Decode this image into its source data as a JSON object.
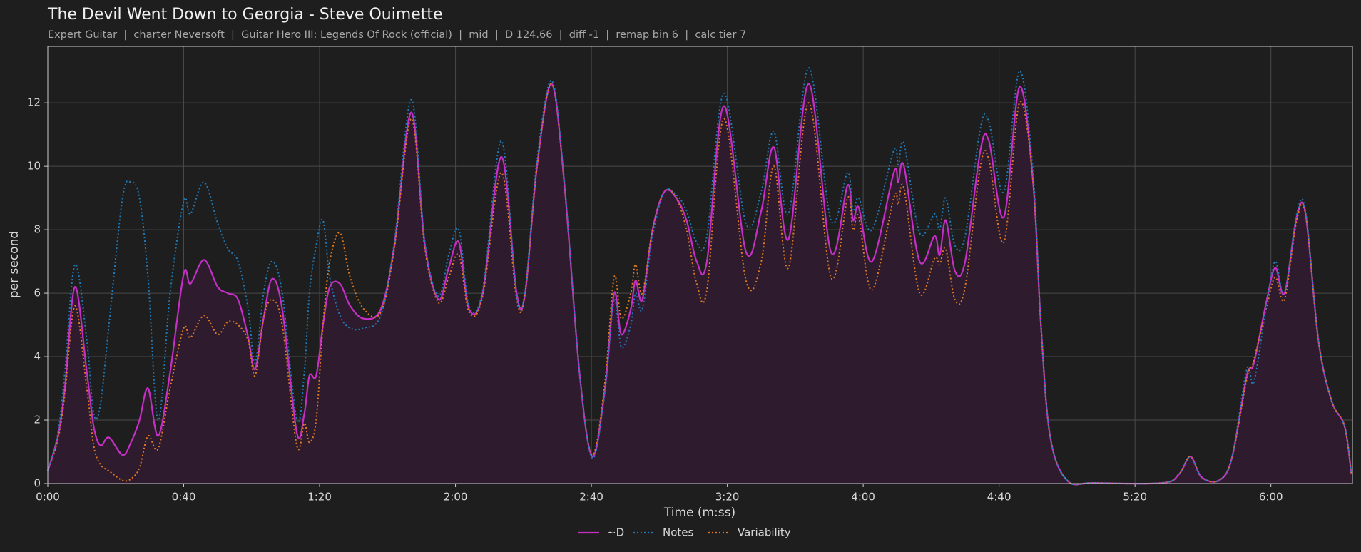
{
  "chart_data": {
    "type": "line",
    "title": "The Devil Went Down to Georgia - Steve Ouimette",
    "subtitle": "Expert Guitar  |  charter Neversoft  |  Guitar Hero III: Legends Of Rock (official)  |  mid  |  D 124.66  |  diff -1  |  remap bin 6  |  calc tier 7",
    "xlabel": "Time (m:ss)",
    "ylabel": "per second",
    "xlim": [
      0,
      384
    ],
    "ylim": [
      0,
      13.78
    ],
    "xticks": [
      {
        "value": 0,
        "label": "0:00"
      },
      {
        "value": 40,
        "label": "0:40"
      },
      {
        "value": 80,
        "label": "1:20"
      },
      {
        "value": 120,
        "label": "2:00"
      },
      {
        "value": 160,
        "label": "2:40"
      },
      {
        "value": 200,
        "label": "3:20"
      },
      {
        "value": 240,
        "label": "4:00"
      },
      {
        "value": 280,
        "label": "4:40"
      },
      {
        "value": 320,
        "label": "5:20"
      },
      {
        "value": 360,
        "label": "6:00"
      }
    ],
    "yticks": [
      0,
      2,
      4,
      6,
      8,
      10,
      12
    ],
    "grid": true,
    "legend": "bottom",
    "x": [
      0,
      3,
      5,
      8,
      11.5,
      13.5,
      15.5,
      18,
      22,
      24.5,
      27,
      29.5,
      32.5,
      36,
      40,
      42,
      46,
      50,
      53,
      56,
      59,
      61,
      63.5,
      66,
      69,
      73.3,
      75.5,
      77,
      79,
      81,
      83,
      86,
      89,
      93,
      98,
      102,
      107,
      111,
      115,
      118,
      121,
      124,
      128,
      133.5,
      138,
      140.5,
      144,
      148.3,
      152,
      156.5,
      160.3,
      164,
      166.7,
      168.8,
      171.6,
      173,
      175,
      178,
      181.5,
      185,
      188,
      191,
      194,
      199,
      205.5,
      210,
      213.7,
      218,
      224,
      230.5,
      235.4,
      237,
      238.7,
      242.6,
      249,
      250.3,
      252,
      256.6,
      261,
      262.5,
      264.3,
      267,
      270,
      274.5,
      277,
      281.4,
      286,
      290,
      292.3,
      295,
      300,
      308,
      328,
      333,
      336.3,
      339.6,
      344.7,
      348.5,
      352.9,
      355,
      358.8,
      361.3,
      364,
      367.6,
      370.2,
      374,
      377.9,
      381.7,
      383.7
    ],
    "series": [
      {
        "name": "~D",
        "color": "#c62fc6",
        "linestyle": "solid",
        "fill": "#2e1b2e",
        "values": [
          0.4,
          1.5,
          3.0,
          6.2,
          3.5,
          1.8,
          1.2,
          1.45,
          0.9,
          1.3,
          2.0,
          3.0,
          1.5,
          3.5,
          6.6,
          6.3,
          7.05,
          6.2,
          6.0,
          5.8,
          4.6,
          3.6,
          5.2,
          6.45,
          5.5,
          1.6,
          2.2,
          3.4,
          3.4,
          5.0,
          6.2,
          6.3,
          5.6,
          5.2,
          5.5,
          7.5,
          11.7,
          7.5,
          5.8,
          6.8,
          7.6,
          5.5,
          6.0,
          10.3,
          6.0,
          6.0,
          10,
          12.6,
          9.5,
          3.5,
          0.85,
          3.0,
          6.0,
          4.7,
          5.5,
          6.4,
          5.8,
          8.0,
          9.2,
          9.0,
          8.3,
          7.0,
          7.0,
          11.9,
          7.3,
          8.6,
          10.6,
          7.7,
          12.6,
          7.3,
          9.4,
          8.3,
          8.7,
          7.0,
          9.8,
          9.5,
          10.0,
          7.0,
          7.8,
          7.2,
          8.3,
          6.7,
          7.0,
          10.5,
          10.8,
          8.4,
          12.5,
          9.5,
          5.0,
          1.5,
          0.1,
          0.02,
          0.02,
          0.3,
          0.85,
          0.2,
          0.1,
          0.8,
          3.4,
          3.8,
          5.8,
          6.8,
          6.0,
          8.4,
          8.5,
          4.5,
          2.6,
          1.8,
          0.3
        ]
      },
      {
        "name": "Notes",
        "color": "#1f7ab8",
        "linestyle": "dotted",
        "values": [
          0.4,
          1.6,
          3.5,
          6.9,
          4.5,
          2.2,
          2.5,
          5.0,
          9.0,
          9.5,
          9.0,
          6.5,
          2.0,
          6.0,
          8.9,
          8.5,
          9.5,
          8.2,
          7.4,
          7.0,
          5.5,
          3.8,
          6.0,
          7.0,
          6.0,
          2.0,
          3.5,
          6.0,
          7.5,
          8.3,
          6.5,
          5.3,
          4.9,
          4.9,
          5.3,
          7.6,
          12.1,
          7.6,
          5.9,
          7.2,
          8.0,
          5.6,
          6.1,
          10.8,
          5.9,
          6.1,
          10.2,
          12.7,
          9.6,
          3.5,
          0.8,
          2.9,
          5.8,
          4.3,
          5.0,
          6.0,
          5.5,
          7.8,
          9.2,
          9.1,
          8.6,
          7.6,
          7.8,
          12.3,
          8.2,
          9.2,
          11.1,
          8.5,
          13.1,
          8.3,
          9.8,
          8.6,
          9.0,
          8.0,
          10.5,
          10.0,
          10.7,
          7.9,
          8.5,
          8.0,
          9.0,
          7.5,
          7.8,
          11.2,
          11.4,
          9.2,
          13.0,
          9.8,
          5.0,
          1.5,
          0.1,
          0.02,
          0.02,
          0.3,
          0.85,
          0.2,
          0.1,
          0.8,
          3.6,
          3.2,
          5.7,
          7.0,
          6.0,
          8.5,
          8.6,
          4.5,
          2.6,
          1.8,
          0.3
        ]
      },
      {
        "name": "Variability",
        "color": "#e07a1f",
        "linestyle": "dotted",
        "values": [
          0.4,
          1.4,
          2.8,
          5.6,
          3.0,
          1.2,
          0.6,
          0.4,
          0.1,
          0.15,
          0.5,
          1.5,
          1.1,
          3.0,
          4.9,
          4.6,
          5.3,
          4.7,
          5.1,
          5.0,
          4.5,
          3.4,
          5.2,
          5.8,
          5.0,
          1.2,
          1.9,
          1.3,
          2.0,
          5.0,
          7.0,
          7.9,
          6.5,
          5.5,
          5.4,
          7.4,
          11.5,
          7.4,
          5.7,
          6.5,
          7.2,
          5.4,
          5.9,
          9.8,
          5.8,
          6.0,
          10,
          12.6,
          9.5,
          3.5,
          0.9,
          3.2,
          6.5,
          5.2,
          6.0,
          6.9,
          6.0,
          8.0,
          9.2,
          9.0,
          8.0,
          6.3,
          6.1,
          11.5,
          6.4,
          7.0,
          10.0,
          6.8,
          12.0,
          6.5,
          9.0,
          8.0,
          8.4,
          6.1,
          9.0,
          8.8,
          9.3,
          6.0,
          7.1,
          6.9,
          7.4,
          5.8,
          6.2,
          10.0,
          10.2,
          7.6,
          12.0,
          9.5,
          5.0,
          1.5,
          0.1,
          0.02,
          0.02,
          0.3,
          0.85,
          0.2,
          0.1,
          0.8,
          3.3,
          3.9,
          5.6,
          6.5,
          5.8,
          8.3,
          8.5,
          4.5,
          2.6,
          1.8,
          0.3
        ]
      }
    ]
  }
}
